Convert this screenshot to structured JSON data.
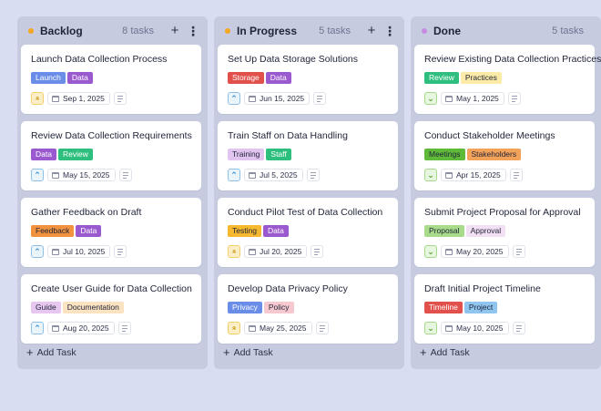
{
  "columns": [
    {
      "title": "Backlog",
      "count": "8 tasks",
      "dot_color": "#f5a623",
      "add_label": "Add Task",
      "cards": [
        {
          "title": "Launch Data Collection Process",
          "tags": [
            {
              "label": "Launch",
              "bg": "#6a8ee8",
              "fg": "#ffffff"
            },
            {
              "label": "Data",
              "bg": "#9b59d0",
              "fg": "#ffffff"
            }
          ],
          "priority": "high",
          "date": "Sep 1, 2025"
        },
        {
          "title": "Review Data Collection Requirements",
          "tags": [
            {
              "label": "Data",
              "bg": "#9b59d0",
              "fg": "#ffffff"
            },
            {
              "label": "Review",
              "bg": "#2ebf7f",
              "fg": "#ffffff"
            }
          ],
          "priority": "up",
          "date": "May 15, 2025"
        },
        {
          "title": "Gather Feedback on Draft",
          "tags": [
            {
              "label": "Feedback",
              "bg": "#f0923e",
              "fg": "#1f2337"
            },
            {
              "label": "Data",
              "bg": "#9b59d0",
              "fg": "#ffffff"
            }
          ],
          "priority": "up",
          "date": "Jul 10, 2025"
        },
        {
          "title": "Create User Guide for Data Collection",
          "tags": [
            {
              "label": "Guide",
              "bg": "#e7c7f0",
              "fg": "#1f2337"
            },
            {
              "label": "Documentation",
              "bg": "#fbe3c2",
              "fg": "#1f2337"
            }
          ],
          "priority": "up",
          "date": "Aug 20, 2025"
        }
      ]
    },
    {
      "title": "In Progress",
      "count": "5 tasks",
      "dot_color": "#f5a623",
      "add_label": "Add Task",
      "cards": [
        {
          "title": "Set Up Data Storage Solutions",
          "tags": [
            {
              "label": "Storage",
              "bg": "#e2504b",
              "fg": "#ffffff"
            },
            {
              "label": "Data",
              "bg": "#9b59d0",
              "fg": "#ffffff"
            }
          ],
          "priority": "up",
          "date": "Jun 15, 2025"
        },
        {
          "title": "Train Staff on Data Handling",
          "tags": [
            {
              "label": "Training",
              "bg": "#e1c4f0",
              "fg": "#1f2337"
            },
            {
              "label": "Staff",
              "bg": "#2ebf7f",
              "fg": "#ffffff"
            }
          ],
          "priority": "up",
          "date": "Jul 5, 2025"
        },
        {
          "title": "Conduct Pilot Test of Data Collection",
          "tags": [
            {
              "label": "Testing",
              "bg": "#f5b82e",
              "fg": "#1f2337"
            },
            {
              "label": "Data",
              "bg": "#9b59d0",
              "fg": "#ffffff"
            }
          ],
          "priority": "high",
          "date": "Jul 20, 2025"
        },
        {
          "title": "Develop Data Privacy Policy",
          "tags": [
            {
              "label": "Privacy",
              "bg": "#6a8ee8",
              "fg": "#ffffff"
            },
            {
              "label": "Policy",
              "bg": "#f6c8cf",
              "fg": "#1f2337"
            }
          ],
          "priority": "high",
          "date": "May 25, 2025"
        }
      ]
    },
    {
      "title": "Done",
      "count": "5 tasks",
      "dot_color": "#c78be6",
      "add_label": "Add Task",
      "cards": [
        {
          "title": "Review Existing Data Collection Practices",
          "tags": [
            {
              "label": "Review",
              "bg": "#2ebf7f",
              "fg": "#ffffff"
            },
            {
              "label": "Practices",
              "bg": "#fbeaa8",
              "fg": "#1f2337"
            }
          ],
          "priority": "down",
          "date": "May 1, 2025"
        },
        {
          "title": "Conduct Stakeholder Meetings",
          "tags": [
            {
              "label": "Meetings",
              "bg": "#5fba3a",
              "fg": "#1f2337"
            },
            {
              "label": "Stakeholders",
              "bg": "#f3a25a",
              "fg": "#1f2337"
            }
          ],
          "priority": "down",
          "date": "Apr 15, 2025"
        },
        {
          "title": "Submit Project Proposal for Approval",
          "tags": [
            {
              "label": "Proposal",
              "bg": "#a8dc8a",
              "fg": "#1f2337"
            },
            {
              "label": "Approval",
              "bg": "#f3dff3",
              "fg": "#1f2337"
            }
          ],
          "priority": "down",
          "date": "May 20, 2025"
        },
        {
          "title": "Draft Initial Project Timeline",
          "tags": [
            {
              "label": "Timeline",
              "bg": "#e2504b",
              "fg": "#ffffff"
            },
            {
              "label": "Project",
              "bg": "#8fc5ef",
              "fg": "#1f2337"
            }
          ],
          "priority": "down",
          "date": "May 10, 2025"
        }
      ]
    }
  ],
  "icons": {
    "add": "plus-icon",
    "menu": "kebab-menu-icon",
    "calendar": "calendar-icon",
    "description": "description-lines-icon"
  }
}
